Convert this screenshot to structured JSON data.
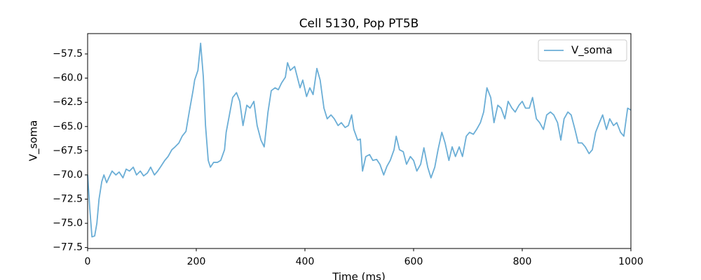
{
  "chart_data": {
    "type": "line",
    "title": "Cell 5130, Pop PT5B",
    "xlabel": "Time (ms)",
    "ylabel": "V_soma",
    "x": [
      0,
      4,
      8,
      13,
      17,
      21,
      26,
      30,
      35,
      39,
      45,
      52,
      58,
      65,
      71,
      77,
      84,
      90,
      97,
      103,
      110,
      116,
      123,
      129,
      135,
      142,
      148,
      155,
      161,
      168,
      174,
      181,
      187,
      194,
      197,
      203,
      208,
      213,
      217,
      222,
      226,
      232,
      239,
      245,
      252,
      255,
      261,
      267,
      274,
      280,
      286,
      293,
      299,
      306,
      312,
      319,
      325,
      332,
      338,
      345,
      351,
      357,
      364,
      368,
      373,
      381,
      386,
      391,
      396,
      403,
      409,
      415,
      422,
      428,
      435,
      441,
      448,
      454,
      461,
      467,
      474,
      480,
      486,
      490,
      497,
      502,
      506,
      512,
      519,
      525,
      532,
      538,
      545,
      551,
      557,
      564,
      568,
      574,
      581,
      587,
      594,
      600,
      606,
      613,
      619,
      626,
      632,
      639,
      645,
      652,
      658,
      665,
      671,
      677,
      684,
      690,
      697,
      703,
      710,
      716,
      723,
      729,
      735,
      742,
      748,
      755,
      761,
      768,
      774,
      781,
      787,
      794,
      800,
      806,
      813,
      819,
      826,
      832,
      839,
      845,
      852,
      858,
      865,
      871,
      877,
      884,
      890,
      897,
      903,
      910,
      916,
      923,
      929,
      935,
      942,
      948,
      955,
      961,
      968,
      974,
      981,
      987,
      994,
      1000
    ],
    "series": [
      {
        "name": "V_soma",
        "color": "#6baed6",
        "values": [
          -70.0,
          -73.5,
          -76.4,
          -76.3,
          -75.0,
          -72.5,
          -70.7,
          -70.0,
          -70.8,
          -70.3,
          -69.6,
          -70.0,
          -69.7,
          -70.3,
          -69.4,
          -69.6,
          -69.2,
          -70.0,
          -69.6,
          -70.1,
          -69.8,
          -69.2,
          -70.0,
          -69.6,
          -69.1,
          -68.5,
          -68.1,
          -67.4,
          -67.1,
          -66.7,
          -66.0,
          -65.5,
          -63.5,
          -61.3,
          -60.2,
          -59.2,
          -56.4,
          -59.9,
          -64.9,
          -68.5,
          -69.2,
          -68.7,
          -68.7,
          -68.5,
          -67.4,
          -65.6,
          -63.8,
          -62.0,
          -61.5,
          -62.4,
          -64.9,
          -62.8,
          -63.1,
          -62.4,
          -64.9,
          -66.4,
          -67.1,
          -63.5,
          -61.3,
          -61.0,
          -61.2,
          -60.5,
          -59.9,
          -58.4,
          -59.2,
          -58.8,
          -59.9,
          -61.0,
          -60.2,
          -61.9,
          -61.0,
          -61.7,
          -59.0,
          -60.2,
          -63.1,
          -64.2,
          -63.8,
          -64.2,
          -64.9,
          -64.6,
          -65.1,
          -64.9,
          -63.8,
          -65.3,
          -66.4,
          -66.3,
          -69.6,
          -68.1,
          -67.9,
          -68.5,
          -68.4,
          -68.9,
          -70.0,
          -69.1,
          -68.5,
          -67.4,
          -66.0,
          -67.4,
          -67.6,
          -68.9,
          -68.1,
          -68.5,
          -69.6,
          -68.9,
          -67.2,
          -69.2,
          -70.3,
          -69.2,
          -67.4,
          -65.6,
          -66.7,
          -68.5,
          -67.1,
          -68.1,
          -67.1,
          -68.1,
          -66.0,
          -65.6,
          -65.8,
          -65.3,
          -64.6,
          -63.5,
          -61.0,
          -62.0,
          -64.6,
          -62.8,
          -63.1,
          -64.2,
          -62.4,
          -63.1,
          -63.5,
          -62.8,
          -62.4,
          -63.1,
          -63.1,
          -62.0,
          -64.2,
          -64.6,
          -65.3,
          -63.8,
          -63.5,
          -63.8,
          -64.6,
          -66.4,
          -64.2,
          -63.5,
          -63.8,
          -65.3,
          -66.7,
          -66.7,
          -67.1,
          -67.8,
          -67.4,
          -65.6,
          -64.6,
          -63.8,
          -65.3,
          -64.2,
          -64.9,
          -64.6,
          -65.6,
          -66.0,
          -63.1,
          -63.3
        ]
      }
    ],
    "xlim": [
      0,
      1000
    ],
    "xticks": [
      0,
      200,
      400,
      600,
      800,
      1000
    ],
    "ylim": [
      -77.6,
      -55.4
    ],
    "yticks": [
      {
        "value": -77.5,
        "label": "−77.5"
      },
      {
        "value": -75,
        "label": "−75.0"
      },
      {
        "value": -72.5,
        "label": "−72.5"
      },
      {
        "value": -70,
        "label": "−70.0"
      },
      {
        "value": -67.5,
        "label": "−67.5"
      },
      {
        "value": -65,
        "label": "−65.0"
      },
      {
        "value": -62.5,
        "label": "−62.5"
      },
      {
        "value": -60,
        "label": "−60.0"
      },
      {
        "value": -57.5,
        "label": "−57.5"
      }
    ],
    "grid": false,
    "legend": "upper right"
  }
}
